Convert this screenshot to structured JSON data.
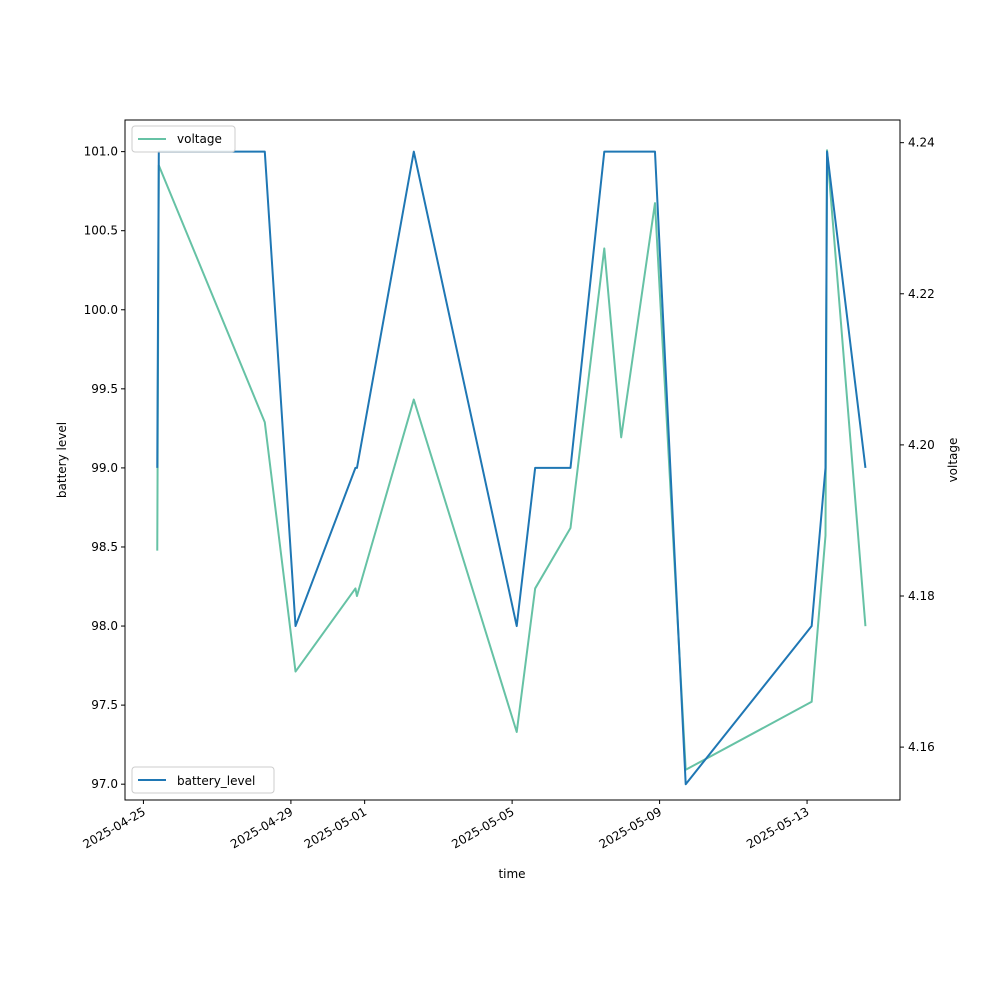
{
  "chart_data": {
    "type": "line",
    "xlabel": "time",
    "y_left_label": "battery level",
    "y_right_label": "voltage",
    "x_ticks": [
      "2025-04-25",
      "2025-04-29",
      "2025-05-01",
      "2025-05-05",
      "2025-05-09",
      "2025-05-13"
    ],
    "y_left_ticks": [
      "97.0",
      "97.5",
      "98.0",
      "98.5",
      "99.0",
      "99.5",
      "100.0",
      "100.5",
      "101.0"
    ],
    "y_right_ticks": [
      "4.16",
      "4.18",
      "4.20",
      "4.22",
      "4.24"
    ],
    "xlim": [
      "2025-04-24 12:00",
      "2025-05-15 12:30"
    ],
    "ylim_left": [
      96.9,
      101.2
    ],
    "ylim_right": [
      4.153,
      4.243
    ],
    "grid": false,
    "series": [
      {
        "name": "battery_level",
        "axis": "left",
        "color": "#1f77b4",
        "legend_position": "lower-left",
        "points": [
          [
            "2025-04-25 09:00",
            99.0
          ],
          [
            "2025-04-25 10:00",
            101.0
          ],
          [
            "2025-04-28 07:00",
            101.0
          ],
          [
            "2025-04-29 03:00",
            98.0
          ],
          [
            "2025-04-30 18:00",
            99.0
          ],
          [
            "2025-04-30 19:00",
            99.0
          ],
          [
            "2025-05-02 08:00",
            101.0
          ],
          [
            "2025-05-05 03:00",
            98.0
          ],
          [
            "2025-05-05 15:00",
            99.0
          ],
          [
            "2025-05-06 14:00",
            99.0
          ],
          [
            "2025-05-07 12:00",
            101.0
          ],
          [
            "2025-05-08 21:00",
            101.0
          ],
          [
            "2025-05-09 17:00",
            97.0
          ],
          [
            "2025-05-13 03:00",
            98.0
          ],
          [
            "2025-05-13 12:00",
            99.0
          ],
          [
            "2025-05-13 13:00",
            101.0
          ],
          [
            "2025-05-14 14:00",
            99.0
          ]
        ]
      },
      {
        "name": "voltage",
        "axis": "right",
        "color": "#66c2a5",
        "legend_position": "upper-left",
        "points": [
          [
            "2025-04-25 09:00",
            4.186
          ],
          [
            "2025-04-25 10:00",
            4.237
          ],
          [
            "2025-04-28 07:00",
            4.203
          ],
          [
            "2025-04-29 03:00",
            4.17
          ],
          [
            "2025-04-30 18:00",
            4.181
          ],
          [
            "2025-04-30 19:00",
            4.18
          ],
          [
            "2025-05-02 08:00",
            4.206
          ],
          [
            "2025-05-05 03:00",
            4.162
          ],
          [
            "2025-05-05 15:00",
            4.181
          ],
          [
            "2025-05-06 14:00",
            4.189
          ],
          [
            "2025-05-07 12:00",
            4.226
          ],
          [
            "2025-05-07 23:00",
            4.201
          ],
          [
            "2025-05-08 21:00",
            4.232
          ],
          [
            "2025-05-09 17:00",
            4.157
          ],
          [
            "2025-05-13 03:00",
            4.166
          ],
          [
            "2025-05-13 12:00",
            4.188
          ],
          [
            "2025-05-13 13:00",
            4.239
          ],
          [
            "2025-05-14 14:00",
            4.176
          ]
        ]
      }
    ]
  }
}
